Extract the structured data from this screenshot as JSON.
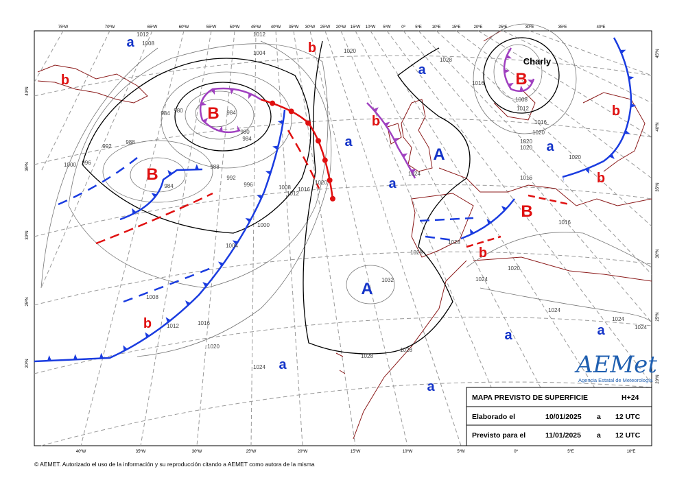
{
  "top_longitudes": [
    "75ºW",
    "70ºW",
    "65ºW",
    "60ºW",
    "55ºW",
    "50ºW",
    "45ºW",
    "40ºW",
    "35ºW",
    "30ºW",
    "25ºW",
    "20ºW",
    "15ºW",
    "10ºW",
    "5ºW",
    "0º",
    "5ºE",
    "10ºE",
    "15ºE",
    "20ºE",
    "25ºE",
    "30ºE",
    "35ºE",
    "40ºE"
  ],
  "bottom_longitudes": [
    "40ºW",
    "35ºW",
    "30ºW",
    "25ºW",
    "20ºW",
    "15ºW",
    "10ºW",
    "5ºW",
    "0º",
    "5ºE",
    "10ºE"
  ],
  "left_latitudes": [
    "40ºN",
    "35ºN",
    "30ºN",
    "25ºN",
    "20ºN"
  ],
  "right_latitudes": [
    "45ºN",
    "40ºN",
    "35ºN",
    "30ºN",
    "25ºN",
    "20ºN"
  ],
  "pressure_centers": [
    {
      "label": "a",
      "color": "#1434c8"
    },
    {
      "label": "b",
      "color": "#e01010"
    },
    {
      "label": "b",
      "color": "#e01010"
    },
    {
      "label": "B",
      "color": "#e01010"
    },
    {
      "label": "B",
      "color": "#e01010"
    },
    {
      "label": "a",
      "color": "#1434c8"
    },
    {
      "label": "b",
      "color": "#e01010"
    },
    {
      "label": "a",
      "color": "#1434c8"
    },
    {
      "label": "B",
      "color": "#e01010"
    },
    {
      "label": "A",
      "color": "#1434c8"
    },
    {
      "label": "a",
      "color": "#1434c8"
    },
    {
      "label": "b",
      "color": "#e01010"
    },
    {
      "label": "a",
      "color": "#1434c8"
    },
    {
      "label": "b",
      "color": "#e01010"
    },
    {
      "label": "B",
      "color": "#e01010"
    },
    {
      "label": "b",
      "color": "#e01010"
    },
    {
      "label": "A",
      "color": "#1434c8"
    },
    {
      "label": "b",
      "color": "#e01010"
    },
    {
      "label": "a",
      "color": "#1434c8"
    },
    {
      "label": "a",
      "color": "#1434c8"
    },
    {
      "label": "a",
      "color": "#1434c8"
    },
    {
      "label": "a",
      "color": "#1434c8"
    }
  ],
  "storm_name": "Charly",
  "isobar_labels": [
    "1012",
    "1008",
    "1012",
    "1004",
    "1020",
    "1028",
    "1016",
    "1008",
    "1012",
    "1016",
    "1020",
    "1020",
    "1020",
    "1020",
    "1016",
    "1016",
    "1020",
    "1024",
    "1024",
    "1024",
    "1024",
    "1028",
    "1032",
    "1028",
    "1028",
    "1024",
    "1020",
    "1016",
    "1012",
    "1008",
    "1004",
    "1000",
    "1012",
    "1016",
    "1008",
    "1020",
    "996",
    "992",
    "988",
    "984",
    "996",
    "1000",
    "992",
    "988",
    "984",
    "980",
    "984",
    "980",
    "984",
    "1024",
    "1028"
  ],
  "info_box": {
    "title": "MAPA PREVISTO DE SUPERFICIE",
    "lead_time": "H+24",
    "rows": [
      [
        "Elaborado el",
        "10/01/2025",
        "a",
        "12 UTC"
      ],
      [
        "Previsto para el",
        "11/01/2025",
        "a",
        "12 UTC"
      ]
    ]
  },
  "logo": {
    "name": "AEMet",
    "subtitle": "Agencia Estatal de Meteorología"
  },
  "footer": "© AEMET. Autorizado el uso de la información y su reproducción citando a AEMET como autora de la misma"
}
